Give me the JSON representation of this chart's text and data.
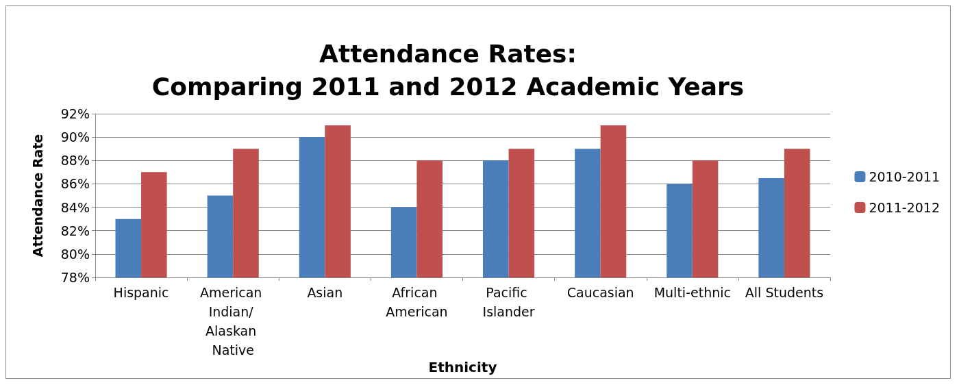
{
  "chart_data": {
    "type": "bar",
    "title": "Attendance Rates:\nComparing 2011 and 2012 Academic Years",
    "xlabel": "Ethnicity",
    "ylabel": "Attendance Rate",
    "categories": [
      "Hispanic",
      "American Indian/ Alaskan Native",
      "Asian",
      "African American",
      "Pacific Islander",
      "Caucasian",
      "Multi-ethnic",
      "All Students"
    ],
    "series": [
      {
        "name": "2010-2011",
        "color": "#4a7ebb",
        "values": [
          83,
          85,
          90,
          84,
          88,
          89,
          86,
          86.5
        ]
      },
      {
        "name": "2011-2012",
        "color": "#c0504d",
        "values": [
          87,
          89,
          91,
          88,
          89,
          91,
          88,
          89
        ]
      }
    ],
    "ylim": [
      78,
      92
    ],
    "yticks": [
      {
        "value": 78,
        "label": "78%"
      },
      {
        "value": 80,
        "label": "80%"
      },
      {
        "value": 82,
        "label": "82%"
      },
      {
        "value": 84,
        "label": "84%"
      },
      {
        "value": 86,
        "label": "86%"
      },
      {
        "value": 88,
        "label": "88%"
      },
      {
        "value": 90,
        "label": "90%"
      },
      {
        "value": 92,
        "label": "92%"
      }
    ],
    "grid": "y",
    "legend": "right"
  }
}
